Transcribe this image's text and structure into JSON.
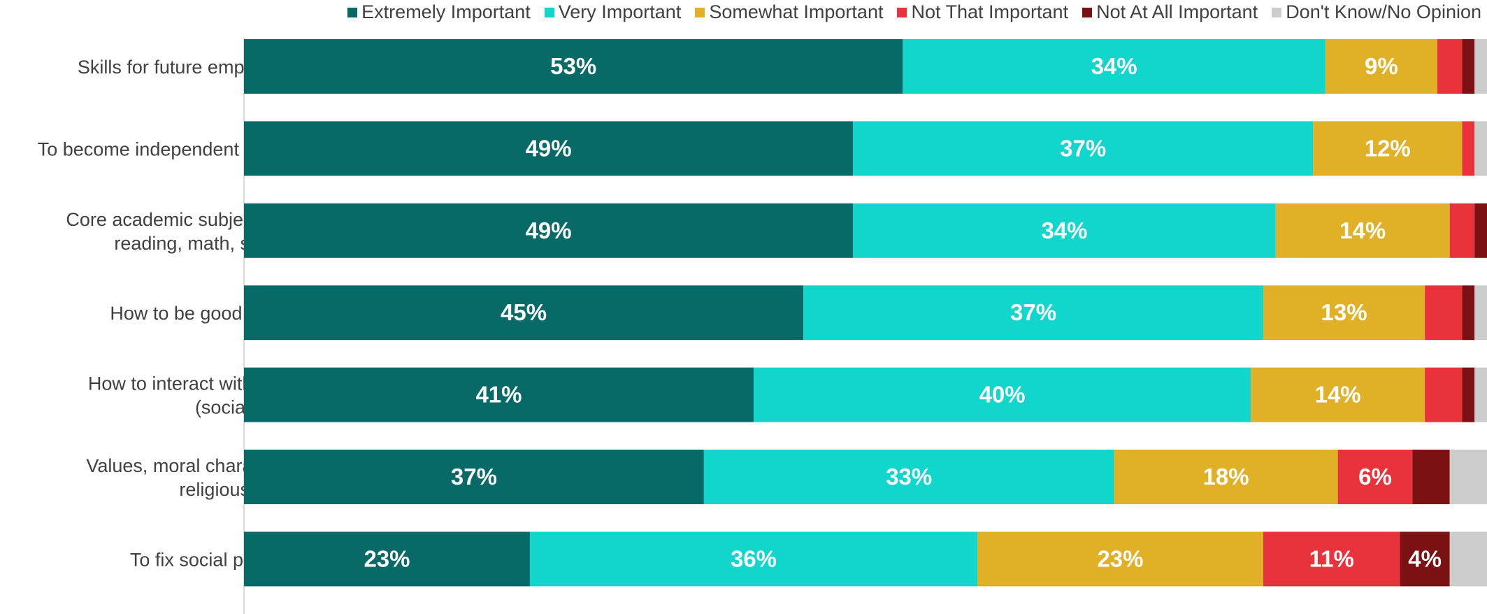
{
  "chart_data": {
    "type": "bar",
    "orientation": "horizontal",
    "stacked": true,
    "title": "",
    "xlabel": "",
    "ylabel": "",
    "xlim": [
      0,
      100
    ],
    "legend_position": "top-right",
    "grid": false,
    "categories": [
      [
        "Skills for future employment"
      ],
      [
        "To become independent thinkers"
      ],
      [
        "Core academic subjects (e.g.",
        "reading, math, science)"
      ],
      [
        "How to be good citizens"
      ],
      [
        "How to interact with others",
        "(socialization)"
      ],
      [
        "Values, moral character, or",
        "religious virtues"
      ],
      [
        "To fix social problems"
      ]
    ],
    "series": [
      {
        "name": "Extremely Important",
        "color": "#086A66",
        "values": [
          53,
          49,
          49,
          45,
          41,
          37,
          23
        ],
        "labels": [
          "53%",
          "49%",
          "49%",
          "45%",
          "41%",
          "37%",
          "23%"
        ]
      },
      {
        "name": "Very Important",
        "color": "#10D6CC",
        "values": [
          34,
          37,
          34,
          37,
          40,
          33,
          36
        ],
        "labels": [
          "34%",
          "37%",
          "34%",
          "37%",
          "40%",
          "33%",
          "36%"
        ]
      },
      {
        "name": "Somewhat Important",
        "color": "#E0B126",
        "values": [
          9,
          12,
          14,
          13,
          14,
          18,
          23
        ],
        "labels": [
          "9%",
          "12%",
          "14%",
          "13%",
          "14%",
          "18%",
          "23%"
        ]
      },
      {
        "name": "Not That Important",
        "color": "#E8333C",
        "values": [
          2,
          1,
          2,
          3,
          3,
          6,
          11
        ],
        "labels": [
          "",
          "",
          "",
          "",
          "",
          "6%",
          "11%"
        ]
      },
      {
        "name": "Not At All Important",
        "color": "#7B1113",
        "values": [
          1,
          0,
          1,
          1,
          1,
          3,
          4
        ],
        "labels": [
          "",
          "",
          "",
          "",
          "",
          "",
          "4%"
        ]
      },
      {
        "name": "Don't Know/No Opinion",
        "color": "#CCCCCC",
        "values": [
          1,
          1,
          1,
          2,
          1,
          3,
          3
        ],
        "labels": [
          "",
          "",
          "",
          "",
          "",
          "",
          ""
        ]
      }
    ]
  }
}
